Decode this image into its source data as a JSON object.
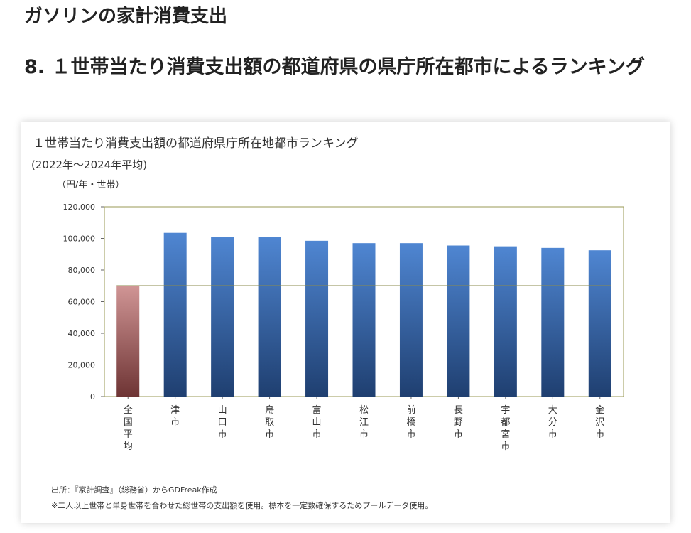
{
  "page": {
    "title": "ガソリンの家計消費支出",
    "section_title": "8. １世帯当たり消費支出額の都道府県の県庁所在都市によるランキング"
  },
  "chart_data": {
    "type": "bar",
    "title": "１世帯当たり消費支出額の都道府県庁所在地都市ランキング",
    "subtitle": "(2022年～2024年平均)",
    "ylabel": "（円/年・世帯）",
    "ylim": [
      0,
      120000
    ],
    "yticks": [
      0,
      20000,
      40000,
      60000,
      80000,
      100000,
      120000
    ],
    "ytick_labels": [
      "0",
      "20,000",
      "40,000",
      "60,000",
      "80,000",
      "100,000",
      "120,000"
    ],
    "categories": [
      "全国平均",
      "津市",
      "山口市",
      "鳥取市",
      "富山市",
      "松江市",
      "前橋市",
      "長野市",
      "宇都宮市",
      "大分市",
      "金沢市"
    ],
    "values": [
      70000,
      103500,
      101000,
      101000,
      98500,
      97000,
      97000,
      95500,
      95000,
      94000,
      92500
    ],
    "reference_line": 70000,
    "grid": false,
    "legend": "none",
    "colors": {
      "highlight": "#c98a8a",
      "highlight_dark": "#7a3a3a",
      "bar": "#4a7fc8",
      "bar_dark": "#1e3d6e",
      "reference_line": "#8b8b4e",
      "plot_border": "#9a9a55"
    }
  },
  "footnotes": {
    "source": "出所：『家計調査』（総務省）からGDFreak作成",
    "note": "※二人以上世帯と単身世帯を合わせた総世帯の支出額を使用。標本を一定数確保するためプールデータ使用。"
  }
}
